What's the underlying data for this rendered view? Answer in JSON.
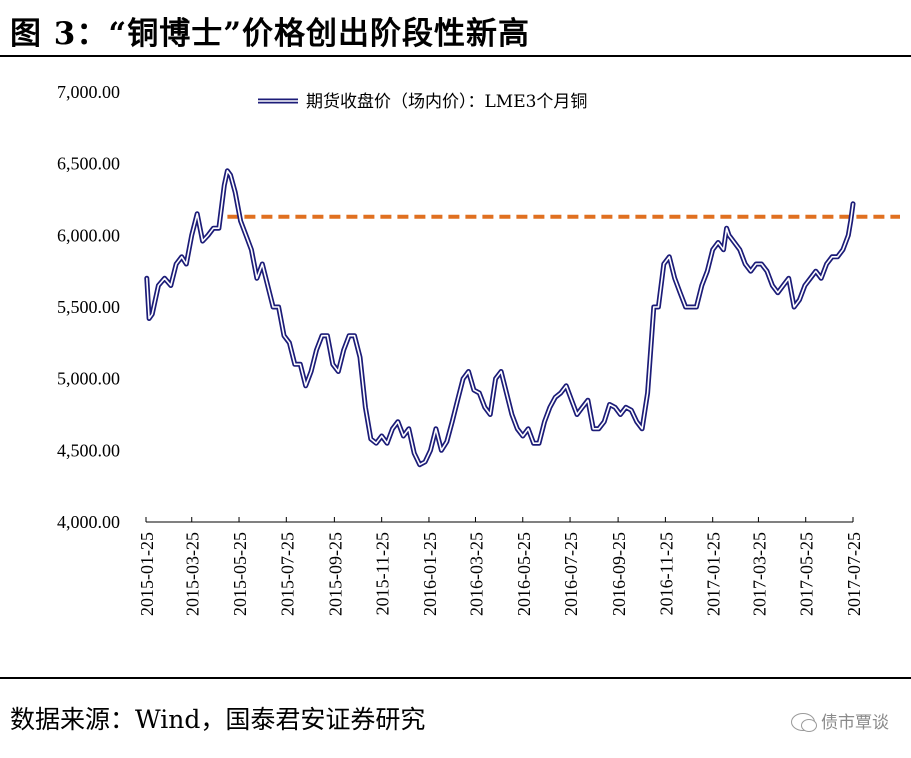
{
  "title": "图 3：“铜博士”价格创出阶段性新高",
  "source": "数据来源：Wind，国泰君安证券研究",
  "watermark": "债市覃谈",
  "watermark_icon": "wechat-icon",
  "colors": {
    "series": "#1c1c78",
    "reference_line": "#e07020",
    "axis": "#000000"
  },
  "chart_data": {
    "type": "line",
    "title": "",
    "xlabel": "",
    "ylabel": "",
    "ylim": [
      4000,
      7000
    ],
    "yticks": [
      "7,000.00",
      "6,500.00",
      "6,000.00",
      "5,500.00",
      "5,000.00",
      "4,500.00",
      "4,000.00"
    ],
    "ytick_values": [
      7000,
      6500,
      6000,
      5500,
      5000,
      4500,
      4000
    ],
    "xlim": [
      "2015-01-25",
      "2017-07-25"
    ],
    "xticks": [
      "2015-01-25",
      "2015-03-25",
      "2015-05-25",
      "2015-07-25",
      "2015-09-25",
      "2015-11-25",
      "2016-01-25",
      "2016-03-25",
      "2016-05-25",
      "2016-07-25",
      "2016-09-25",
      "2016-11-25",
      "2017-01-25",
      "2017-03-25",
      "2017-05-25",
      "2017-07-25"
    ],
    "grid": false,
    "legend": "top",
    "series": [
      {
        "name": "期货收盘价（场内价）：LME3个月铜",
        "style": "double-line",
        "x": [
          "2015-01-26",
          "2015-01-29",
          "2015-02-02",
          "2015-02-10",
          "2015-02-18",
          "2015-02-26",
          "2015-03-05",
          "2015-03-12",
          "2015-03-18",
          "2015-03-25",
          "2015-04-01",
          "2015-04-08",
          "2015-04-15",
          "2015-04-22",
          "2015-04-29",
          "2015-05-06",
          "2015-05-10",
          "2015-05-14",
          "2015-05-20",
          "2015-05-27",
          "2015-06-03",
          "2015-06-10",
          "2015-06-17",
          "2015-06-24",
          "2015-07-01",
          "2015-07-08",
          "2015-07-15",
          "2015-07-22",
          "2015-07-29",
          "2015-08-05",
          "2015-08-12",
          "2015-08-19",
          "2015-08-26",
          "2015-09-02",
          "2015-09-09",
          "2015-09-16",
          "2015-09-23",
          "2015-09-30",
          "2015-10-07",
          "2015-10-14",
          "2015-10-21",
          "2015-10-28",
          "2015-11-04",
          "2015-11-11",
          "2015-11-18",
          "2015-11-25",
          "2015-12-02",
          "2015-12-09",
          "2015-12-16",
          "2015-12-23",
          "2015-12-30",
          "2016-01-06",
          "2016-01-13",
          "2016-01-20",
          "2016-01-27",
          "2016-02-03",
          "2016-02-10",
          "2016-02-17",
          "2016-02-24",
          "2016-03-02",
          "2016-03-09",
          "2016-03-16",
          "2016-03-23",
          "2016-03-30",
          "2016-04-06",
          "2016-04-13",
          "2016-04-20",
          "2016-04-27",
          "2016-05-04",
          "2016-05-11",
          "2016-05-18",
          "2016-05-25",
          "2016-06-01",
          "2016-06-08",
          "2016-06-15",
          "2016-06-22",
          "2016-06-29",
          "2016-07-06",
          "2016-07-13",
          "2016-07-20",
          "2016-07-27",
          "2016-08-03",
          "2016-08-10",
          "2016-08-17",
          "2016-08-24",
          "2016-08-31",
          "2016-09-07",
          "2016-09-14",
          "2016-09-21",
          "2016-09-28",
          "2016-10-05",
          "2016-10-12",
          "2016-10-19",
          "2016-10-26",
          "2016-11-02",
          "2016-11-06",
          "2016-11-10",
          "2016-11-16",
          "2016-11-23",
          "2016-11-30",
          "2016-12-07",
          "2016-12-14",
          "2016-12-21",
          "2016-12-28",
          "2017-01-04",
          "2017-01-11",
          "2017-01-18",
          "2017-01-25",
          "2017-02-01",
          "2017-02-08",
          "2017-02-12",
          "2017-02-15",
          "2017-02-22",
          "2017-03-01",
          "2017-03-08",
          "2017-03-15",
          "2017-03-22",
          "2017-03-29",
          "2017-04-05",
          "2017-04-12",
          "2017-04-19",
          "2017-04-26",
          "2017-05-03",
          "2017-05-10",
          "2017-05-17",
          "2017-05-24",
          "2017-05-31",
          "2017-06-07",
          "2017-06-14",
          "2017-06-21",
          "2017-06-28",
          "2017-07-05",
          "2017-07-12",
          "2017-07-19",
          "2017-07-22",
          "2017-07-25"
        ],
        "values": [
          5700,
          5420,
          5450,
          5650,
          5700,
          5650,
          5800,
          5850,
          5800,
          6000,
          6150,
          5960,
          6000,
          6050,
          6050,
          6350,
          6450,
          6420,
          6300,
          6100,
          6000,
          5900,
          5700,
          5800,
          5650,
          5500,
          5500,
          5300,
          5250,
          5100,
          5100,
          4950,
          5050,
          5200,
          5300,
          5300,
          5100,
          5050,
          5200,
          5300,
          5300,
          5150,
          4800,
          4580,
          4550,
          4600,
          4550,
          4650,
          4700,
          4600,
          4650,
          4480,
          4400,
          4420,
          4500,
          4650,
          4500,
          4560,
          4700,
          4850,
          5000,
          5050,
          4920,
          4900,
          4800,
          4750,
          5000,
          5050,
          4900,
          4750,
          4650,
          4600,
          4650,
          4550,
          4550,
          4700,
          4800,
          4870,
          4900,
          4950,
          4850,
          4750,
          4800,
          4850,
          4650,
          4650,
          4700,
          4820,
          4800,
          4750,
          4800,
          4780,
          4700,
          4650,
          4900,
          5200,
          5500,
          5500,
          5800,
          5850,
          5700,
          5600,
          5500,
          5500,
          5500,
          5650,
          5750,
          5900,
          5950,
          5900,
          6050,
          6000,
          5950,
          5900,
          5800,
          5750,
          5800,
          5800,
          5750,
          5650,
          5600,
          5650,
          5700,
          5500,
          5550,
          5650,
          5700,
          5750,
          5700,
          5800,
          5850,
          5850,
          5900,
          6000,
          6100,
          6220
        ]
      }
    ],
    "reference_line": {
      "style": "dashed",
      "value": 6130,
      "from": "2015-05-10",
      "to": "2017-07-25"
    }
  }
}
